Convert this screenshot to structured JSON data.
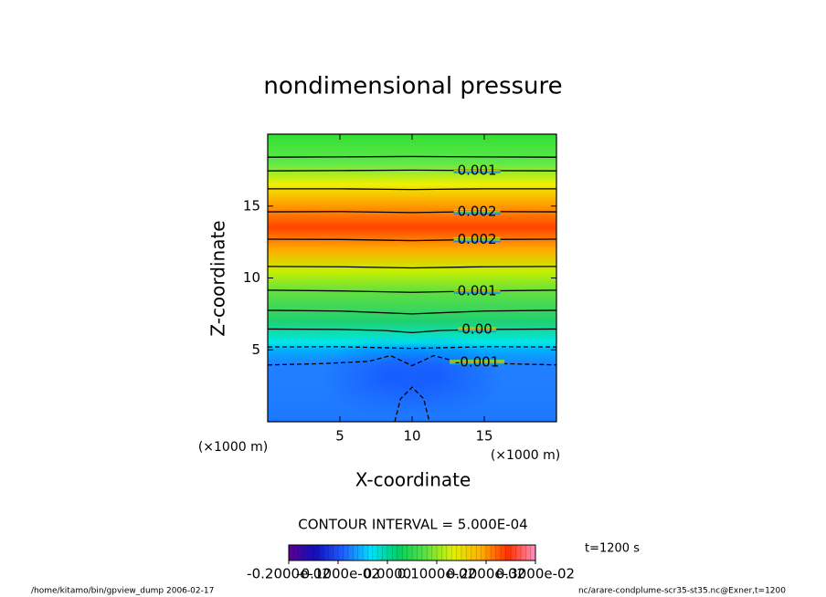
{
  "chart_data": {
    "type": "contour",
    "title": "nondimensional pressure",
    "x_label": "X-coordinate",
    "y_label": "Z-coordinate",
    "x_unit": "(×1000 m)",
    "y_unit": "(×1000 m)",
    "xlim": [
      0,
      20
    ],
    "ylim": [
      0,
      20
    ],
    "xticks": [
      5,
      10,
      15
    ],
    "yticks": [
      5,
      10,
      15
    ],
    "field": {
      "z": [
        0,
        4,
        5,
        5.5,
        7,
        9,
        10.5,
        12,
        13.5,
        15,
        16.5,
        18,
        20
      ],
      "colors": [
        "#1e78ff",
        "#2080ff",
        "#00b0ff",
        "#00e8e8",
        "#20d070",
        "#60e040",
        "#c8f000",
        "#ffaa00",
        "#ff4400",
        "#ff9900",
        "#f0f000",
        "#5ee84a",
        "#33e033"
      ]
    },
    "minima": {
      "x": [
        8.2,
        11.8
      ],
      "y": [
        3.2,
        3.2
      ],
      "color": "#1040ff"
    },
    "contours": [
      {
        "level": 0.0005,
        "x": [
          0,
          5,
          10,
          15,
          20
        ],
        "y": [
          18.4,
          18.42,
          18.45,
          18.42,
          18.4
        ]
      },
      {
        "level": 0.001,
        "label": "0.001",
        "x": [
          0,
          5,
          10,
          15,
          20
        ],
        "y": [
          17.45,
          17.47,
          17.5,
          17.47,
          17.45
        ]
      },
      {
        "level": 0.0015,
        "x": [
          0,
          5,
          10,
          15,
          20
        ],
        "y": [
          16.2,
          16.2,
          16.15,
          16.2,
          16.2
        ]
      },
      {
        "level": 0.002,
        "label": "0.002",
        "x": [
          0,
          5,
          10,
          15,
          20
        ],
        "y": [
          14.6,
          14.62,
          14.55,
          14.62,
          14.6
        ]
      },
      {
        "level": 0.002,
        "label": "0.002",
        "x": [
          0,
          5,
          10,
          15,
          20
        ],
        "y": [
          12.7,
          12.68,
          12.6,
          12.68,
          12.7
        ]
      },
      {
        "level": 0.0015,
        "x": [
          0,
          5,
          10,
          15,
          20
        ],
        "y": [
          10.8,
          10.78,
          10.7,
          10.78,
          10.8
        ]
      },
      {
        "level": 0.001,
        "label": "0.001",
        "x": [
          0,
          5,
          10,
          15,
          20
        ],
        "y": [
          9.15,
          9.1,
          9.0,
          9.1,
          9.15
        ]
      },
      {
        "level": 0.0005,
        "x": [
          0,
          5,
          10,
          15,
          20
        ],
        "y": [
          7.75,
          7.7,
          7.5,
          7.7,
          7.75
        ]
      },
      {
        "level": 0,
        "label": "0.00",
        "x": [
          0,
          5,
          8,
          10,
          12,
          15,
          20
        ],
        "y": [
          6.45,
          6.42,
          6.35,
          6.2,
          6.35,
          6.42,
          6.45
        ]
      },
      {
        "level": -0.0005,
        "x": [
          0,
          5,
          10,
          15,
          20
        ],
        "y": [
          5.2,
          5.22,
          5.1,
          5.22,
          5.2
        ]
      },
      {
        "level": -0.001,
        "label": "-0.001",
        "x": [
          0,
          4,
          7,
          8.5,
          10,
          11.5,
          13,
          16,
          20
        ],
        "y": [
          3.95,
          4.05,
          4.2,
          4.6,
          3.9,
          4.6,
          4.2,
          4.05,
          3.95
        ]
      },
      {
        "level": -0.0015,
        "x": [
          8.8,
          9.2,
          10,
          10.8,
          11.2
        ],
        "y": [
          0,
          1.6,
          2.4,
          1.6,
          0
        ]
      }
    ],
    "contour_interval": "CONTOUR INTERVAL = 5.000E-04",
    "time": "t=1200 s",
    "colorbar": {
      "lim": [
        -0.002,
        0.003
      ],
      "colors": [
        "#5a0090",
        "#1010c0",
        "#2060ff",
        "#00e0ff",
        "#00d060",
        "#60e040",
        "#e0f000",
        "#ffb000",
        "#ff3000",
        "#ff90c0"
      ],
      "ticks": [
        {
          "value": -0.002,
          "label": "-0.2000e-02"
        },
        {
          "value": -0.001,
          "label": "-0.1000e-02"
        },
        {
          "value": 0,
          "label": "0.0000"
        },
        {
          "value": 0.001,
          "label": "0.1000e-02"
        },
        {
          "value": 0.002,
          "label": "0.2000e-02"
        },
        {
          "value": 0.003,
          "label": "0.3000e-02"
        }
      ]
    },
    "footer_left": "/home/kitamo/bin/gpview_dump  2006-02-17",
    "footer_right": "nc/arare-condplume-scr35-st35.nc@Exner,t=1200"
  }
}
